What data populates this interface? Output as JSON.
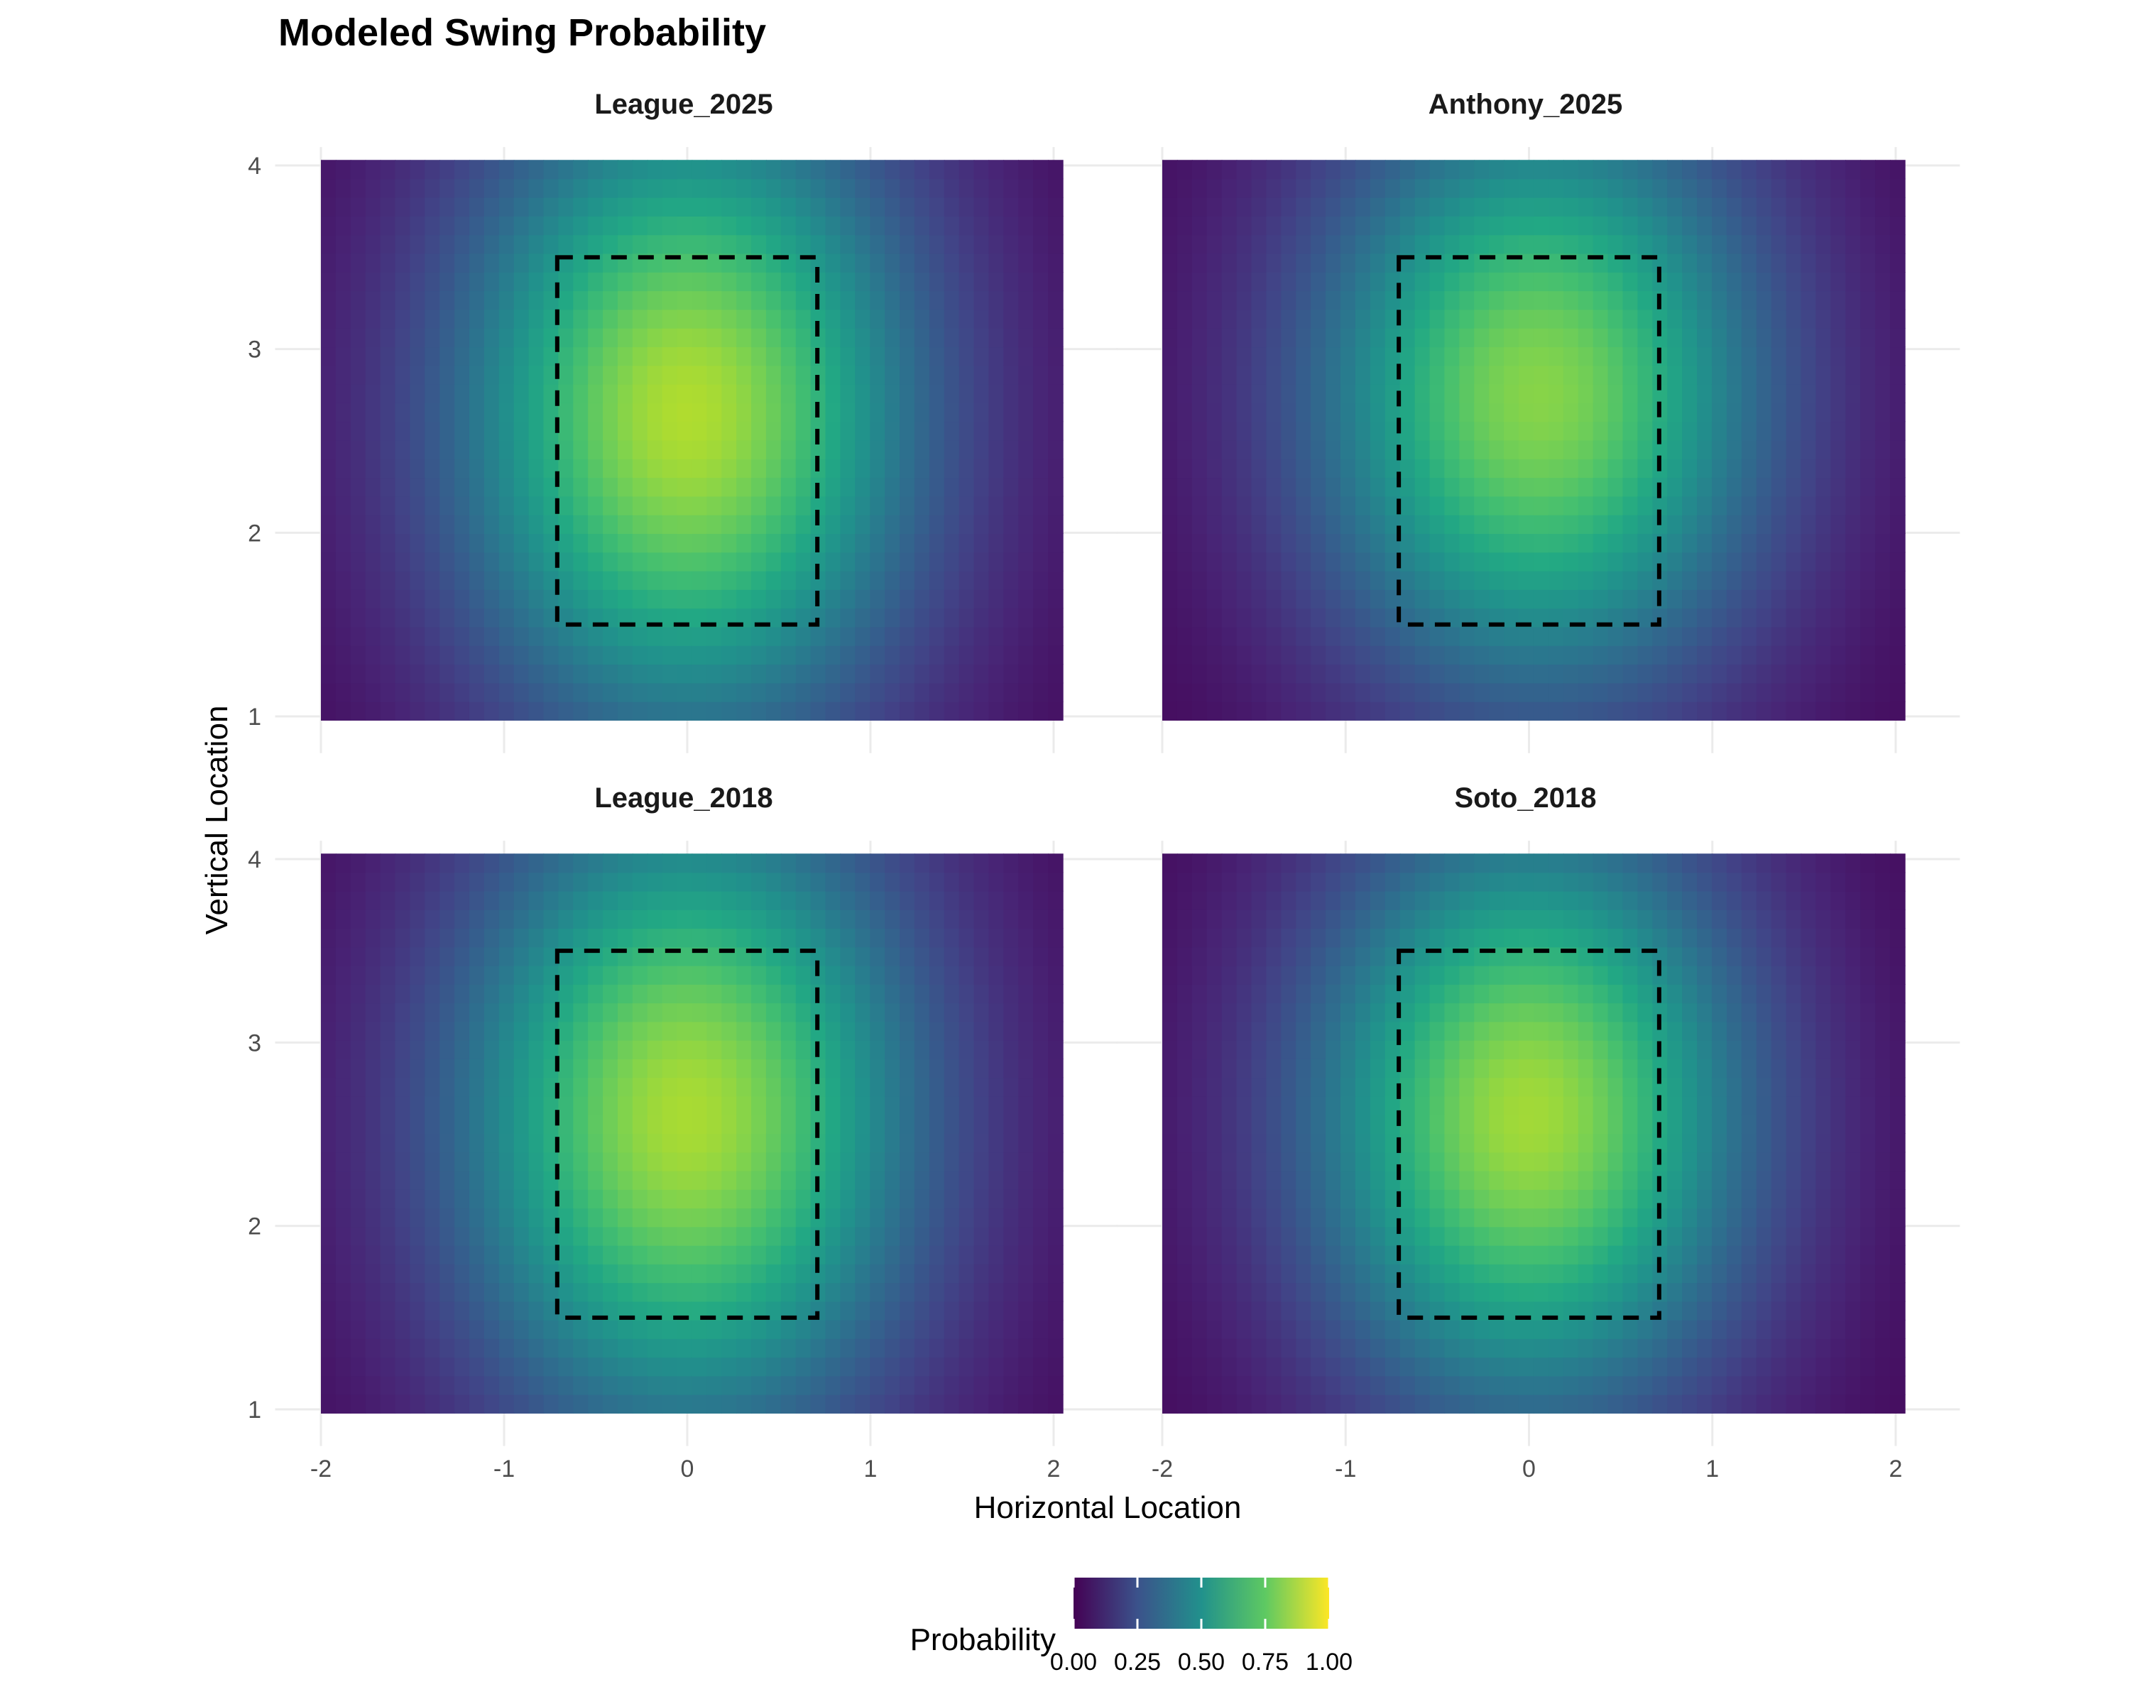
{
  "chart_data": {
    "type": "heatmap",
    "title": "Modeled Swing Probability",
    "xlabel": "Horizontal Location",
    "ylabel": "Vertical Location",
    "xlim": [
      -2,
      2
    ],
    "ylim": [
      1,
      4
    ],
    "x_ticks": [
      "-2",
      "-1",
      "0",
      "1",
      "2"
    ],
    "y_ticks": [
      "1",
      "2",
      "3",
      "4"
    ],
    "x_tick_values": [
      -2,
      -1,
      0,
      1,
      2
    ],
    "y_tick_values": [
      1,
      2,
      3,
      4
    ],
    "colormap": "viridis",
    "colors": [
      "#440154",
      "#3b528b",
      "#21918c",
      "#5ec962",
      "#fde725"
    ],
    "grid": true,
    "strike_zone": {
      "x": [
        -0.71,
        0.71
      ],
      "z": [
        1.5,
        3.5
      ],
      "line": "dashed",
      "color": "#000000"
    },
    "panels": [
      {
        "name": "League_2025",
        "peak_x": 0.0,
        "peak_z": 2.65,
        "peak_prob": 0.86,
        "spread_x": 0.9,
        "spread_z": 1.25
      },
      {
        "name": "Anthony_2025",
        "peak_x": 0.05,
        "peak_z": 2.75,
        "peak_prob": 0.8,
        "spread_x": 0.88,
        "spread_z": 1.15
      },
      {
        "name": "League_2018",
        "peak_x": 0.0,
        "peak_z": 2.6,
        "peak_prob": 0.85,
        "spread_x": 0.9,
        "spread_z": 1.25
      },
      {
        "name": "Soto_2018",
        "peak_x": 0.0,
        "peak_z": 2.6,
        "peak_prob": 0.84,
        "spread_x": 0.85,
        "spread_z": 1.15
      }
    ],
    "legend": {
      "title": "Probability",
      "position": "bottom",
      "range": [
        0,
        1
      ],
      "ticks": [
        "0.00",
        "0.25",
        "0.50",
        "0.75",
        "1.00"
      ],
      "tick_values": [
        0,
        0.25,
        0.5,
        0.75,
        1
      ]
    }
  }
}
